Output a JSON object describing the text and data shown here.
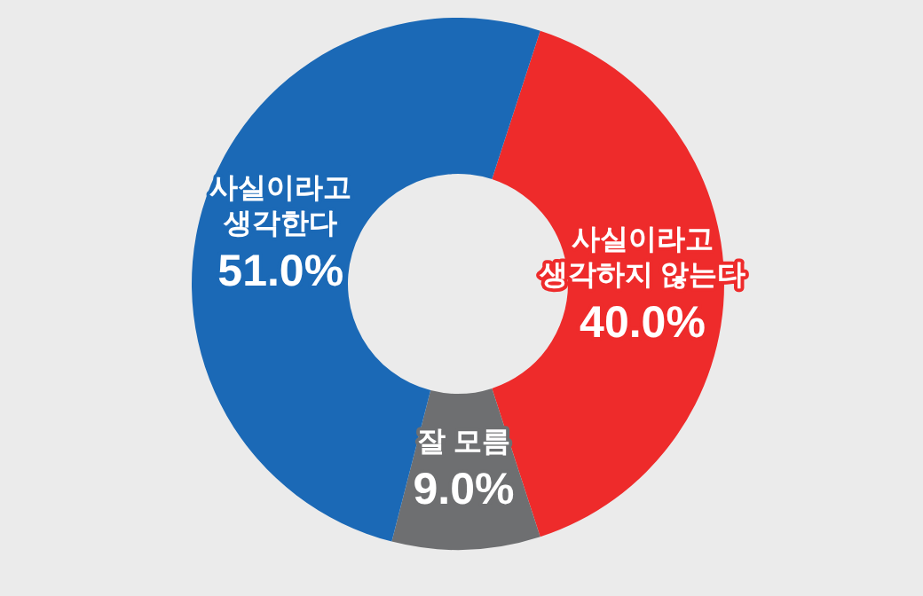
{
  "chart_data": {
    "type": "donut",
    "categories": [
      "사실이라고\n생각하지 않는다",
      "잘 모름",
      "사실이라고\n생각한다"
    ],
    "values": [
      40.0,
      9.0,
      51.0
    ],
    "colors": [
      "#ee2b2b",
      "#6e6f71",
      "#1b69b6"
    ],
    "value_labels": [
      "40.0%",
      "9.0%",
      "51.0%"
    ]
  }
}
